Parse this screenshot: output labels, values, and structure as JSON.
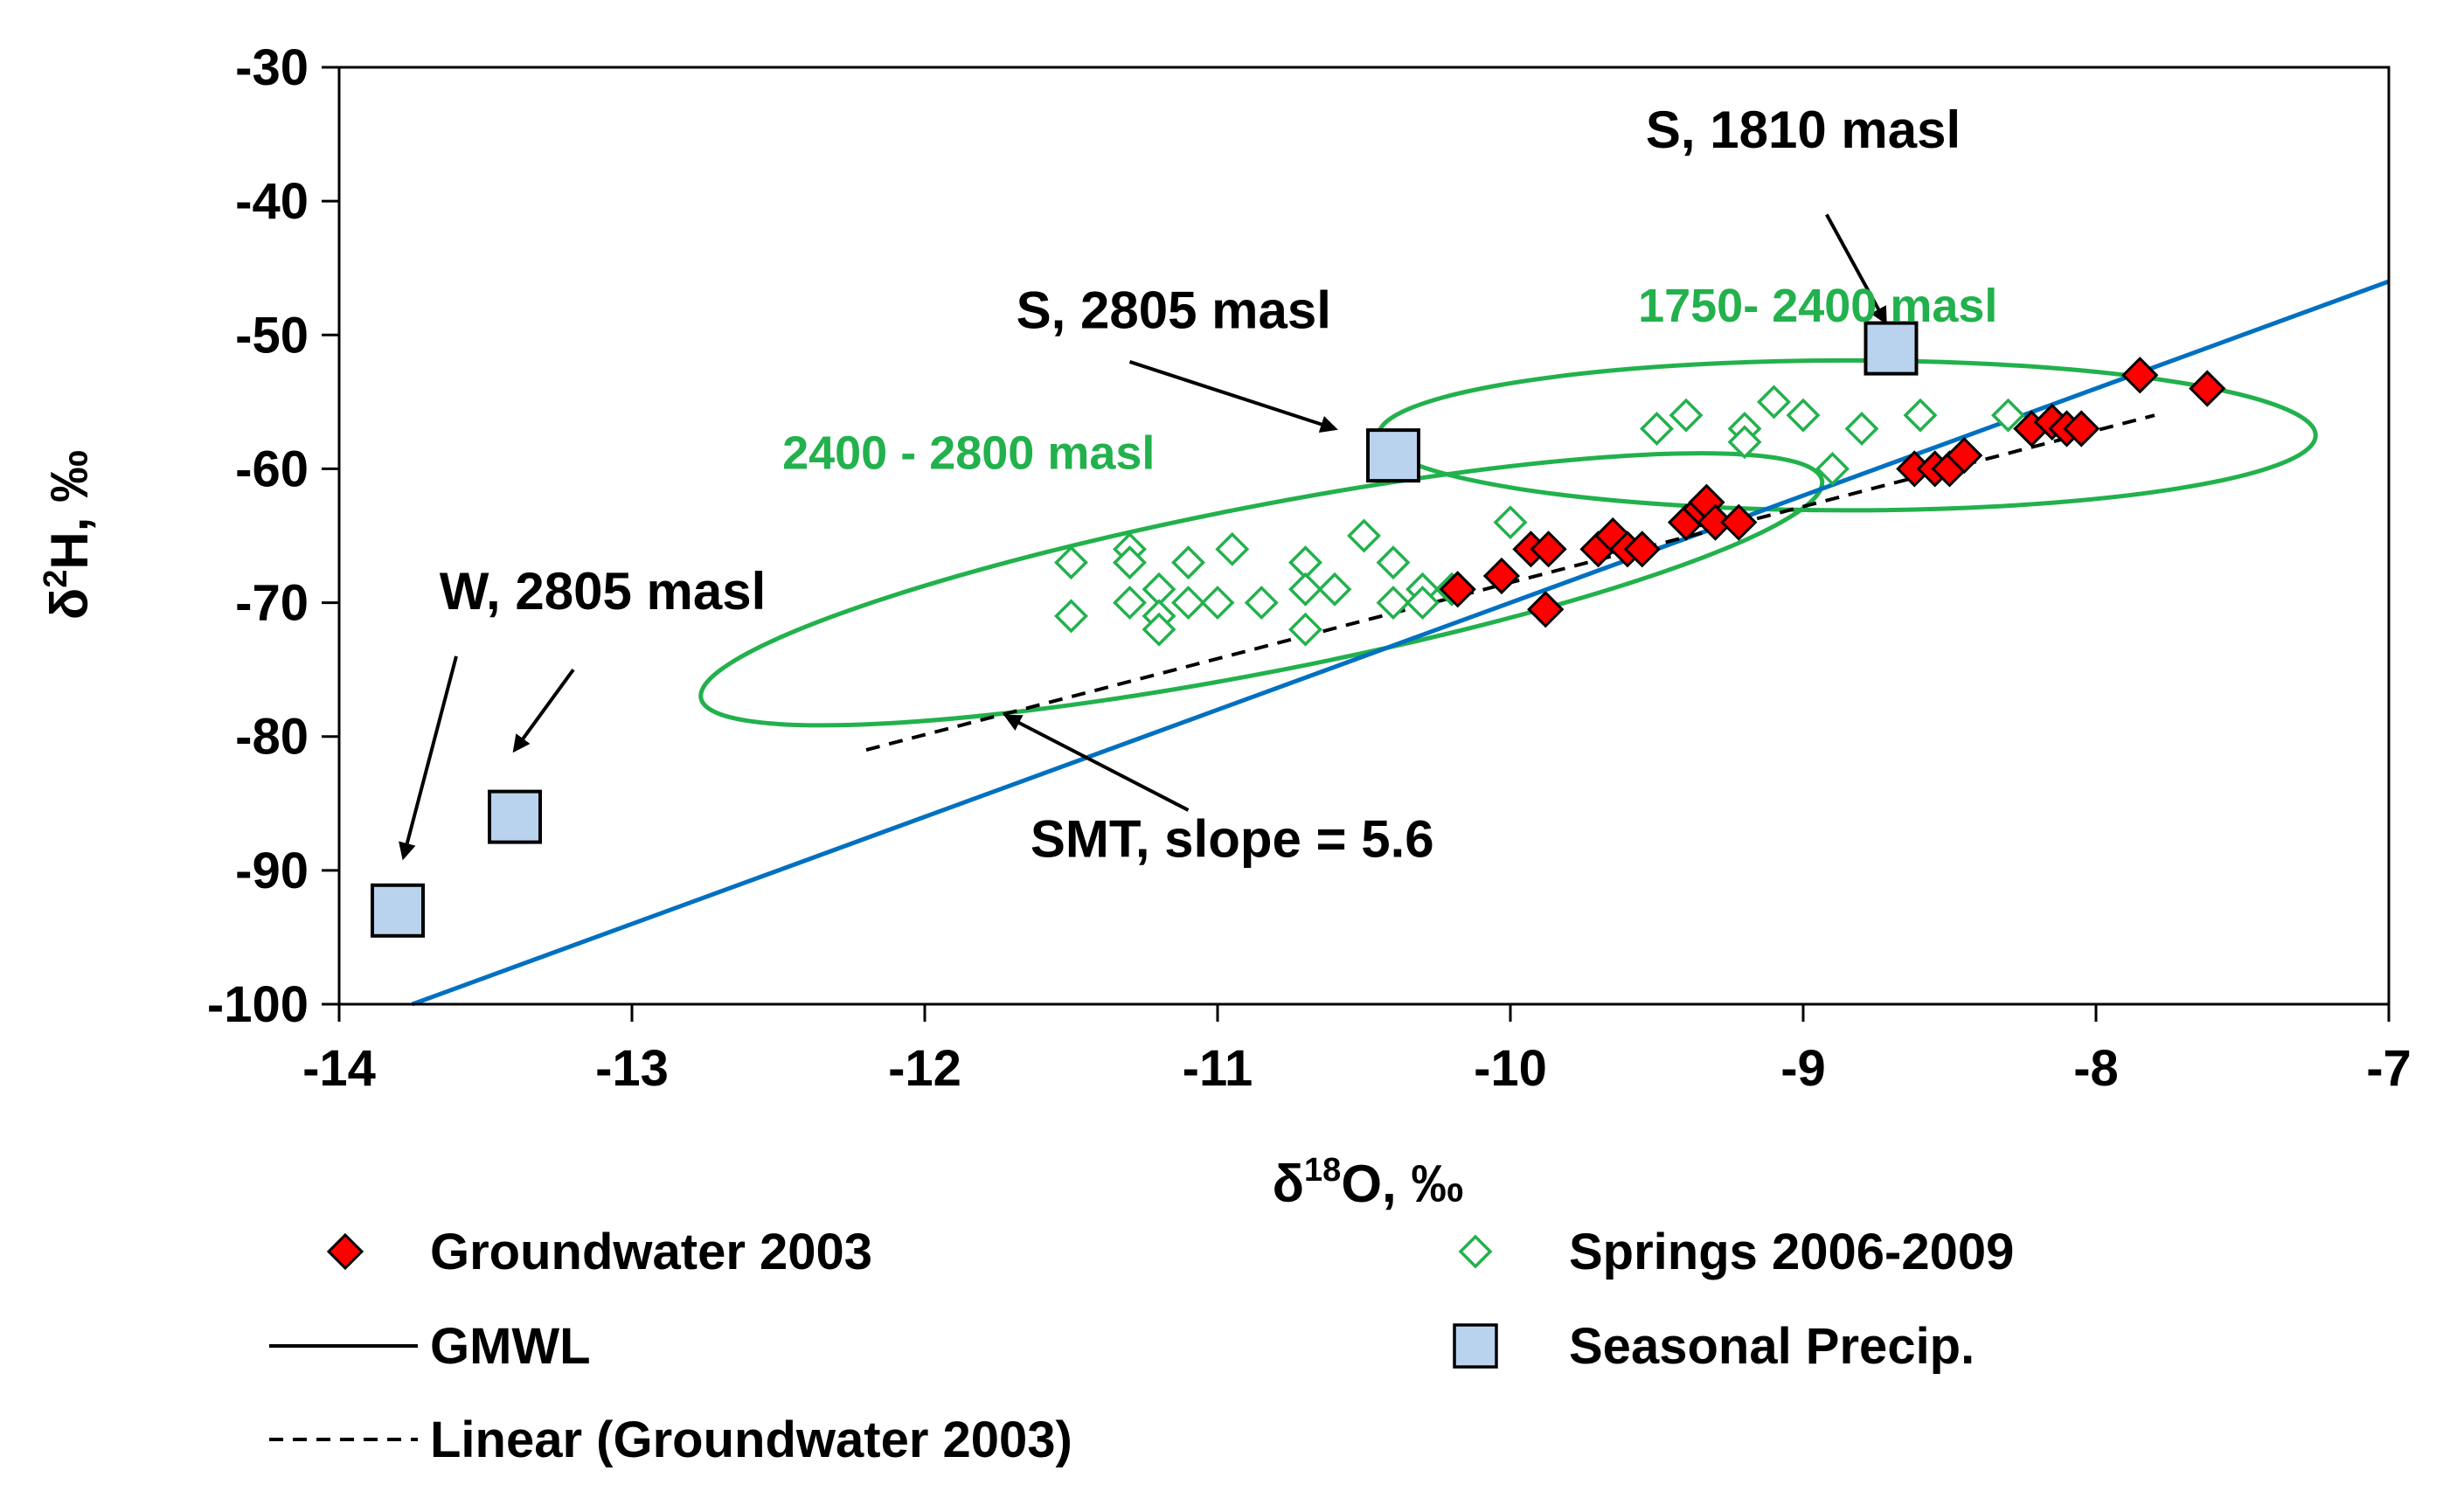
{
  "chart_data": {
    "type": "scatter",
    "title": "",
    "xlabel": {
      "delta": "δ",
      "sup": "18",
      "rest": "O, ‰"
    },
    "ylabel": {
      "delta": "δ",
      "sup": "2",
      "rest": "H, ‰"
    },
    "xlim": [
      -14,
      -7
    ],
    "ylim": [
      -100,
      -30
    ],
    "xticks": [
      -14,
      -13,
      -12,
      -11,
      -10,
      -9,
      -8,
      -7
    ],
    "yticks": [
      -100,
      -90,
      -80,
      -70,
      -60,
      -50,
      -40,
      -30
    ],
    "grid": false,
    "legend_position": "bottom",
    "colors": {
      "groundwater": "#ff0000",
      "springs": "#22b14c",
      "gmwl": "#0070c0",
      "precip_fill": "#b9d3ee",
      "ellipse": "#22b14c"
    },
    "series": [
      {
        "name": "Groundwater 2003",
        "marker": "diamond-filled",
        "points": [
          [
            -10.18,
            -69
          ],
          [
            -10.03,
            -68
          ],
          [
            -9.93,
            -66
          ],
          [
            -9.87,
            -66
          ],
          [
            -9.88,
            -70.5
          ],
          [
            -9.7,
            -66
          ],
          [
            -9.65,
            -65
          ],
          [
            -9.6,
            -66
          ],
          [
            -9.55,
            -66
          ],
          [
            -9.4,
            -64
          ],
          [
            -9.35,
            -63
          ],
          [
            -9.33,
            -62.5
          ],
          [
            -9.3,
            -64
          ],
          [
            -9.22,
            -64
          ],
          [
            -8.62,
            -60
          ],
          [
            -8.55,
            -60
          ],
          [
            -8.5,
            -60
          ],
          [
            -8.45,
            -59
          ],
          [
            -8.22,
            -57
          ],
          [
            -8.15,
            -56.5
          ],
          [
            -8.1,
            -57
          ],
          [
            -8.05,
            -57
          ],
          [
            -7.85,
            -53
          ],
          [
            -7.62,
            -54
          ]
        ]
      },
      {
        "name": "Springs 2006-2009",
        "marker": "diamond-open",
        "points": [
          [
            -11.5,
            -67
          ],
          [
            -11.5,
            -71
          ],
          [
            -11.3,
            -66
          ],
          [
            -11.3,
            -67
          ],
          [
            -11.3,
            -70
          ],
          [
            -11.2,
            -69
          ],
          [
            -11.2,
            -71
          ],
          [
            -11.2,
            -72
          ],
          [
            -11.1,
            -67
          ],
          [
            -11.1,
            -70
          ],
          [
            -11.0,
            -70
          ],
          [
            -10.95,
            -66
          ],
          [
            -10.85,
            -70
          ],
          [
            -10.7,
            -67
          ],
          [
            -10.7,
            -69
          ],
          [
            -10.7,
            -72
          ],
          [
            -10.6,
            -69
          ],
          [
            -10.5,
            -65
          ],
          [
            -10.4,
            -67
          ],
          [
            -10.4,
            -70
          ],
          [
            -10.3,
            -69
          ],
          [
            -10.3,
            -70
          ],
          [
            -10.2,
            -69
          ],
          [
            -10.0,
            -64
          ],
          [
            -9.5,
            -57
          ],
          [
            -9.4,
            -56
          ],
          [
            -9.2,
            -57
          ],
          [
            -9.2,
            -58
          ],
          [
            -9.1,
            -55
          ],
          [
            -9.0,
            -56
          ],
          [
            -8.9,
            -60
          ],
          [
            -8.8,
            -57
          ],
          [
            -8.6,
            -56
          ],
          [
            -8.3,
            -56
          ]
        ]
      },
      {
        "name": "GMWL",
        "type": "line",
        "slope": 8,
        "intercept": 10,
        "x_range": [
          -13.75,
          -7
        ]
      },
      {
        "name": "Seasonal Precip.",
        "marker": "square",
        "points": [
          [
            -13.8,
            -93
          ],
          [
            -13.4,
            -86
          ],
          [
            -10.4,
            -59
          ],
          [
            -8.7,
            -51
          ]
        ]
      },
      {
        "name": "Linear (Groundwater 2003)",
        "type": "line",
        "style": "dashed",
        "points": [
          [
            -12.2,
            -81
          ],
          [
            -7.8,
            -56
          ]
        ]
      }
    ],
    "ellipses": [
      {
        "label_ref": "band_2400_2800",
        "cx": -10.85,
        "cy": -69,
        "rx": 1.95,
        "ry": 6.2,
        "rotate_deg": -11
      },
      {
        "label_ref": "band_1750_2400",
        "cx": -8.85,
        "cy": -57.5,
        "rx": 1.6,
        "ry": 5.6,
        "rotate_deg": 0
      }
    ],
    "annotations": {
      "s1810": {
        "text": "S, 1810 masl",
        "anchor": [
          -9.0,
          -36
        ],
        "arrow_from": [
          -8.92,
          -41
        ],
        "arrow_to": [
          -8.72,
          -49
        ]
      },
      "s2805": {
        "text": "S, 2805 masl",
        "anchor": [
          -11.15,
          -49.5
        ],
        "arrow_from": [
          -11.3,
          -52
        ],
        "arrow_to": [
          -10.6,
          -57
        ]
      },
      "w2805": {
        "text": "W, 2805 masl",
        "anchor": [
          -13.1,
          -70.5
        ],
        "arrow1_from": [
          -13.6,
          -74
        ],
        "arrow1_to": [
          -13.78,
          -89
        ],
        "arrow2_from": [
          -13.2,
          -75
        ],
        "arrow2_to": [
          -13.4,
          -81
        ]
      },
      "smt": {
        "text": "SMT, slope = 5.6",
        "anchor": [
          -10.95,
          -89
        ],
        "arrow_from": [
          -11.1,
          -85.5
        ],
        "arrow_to": [
          -11.72,
          -78.5
        ]
      },
      "band_1750_2400": {
        "text": "1750- 2400 masl",
        "anchor": [
          -8.95,
          -49
        ]
      },
      "band_2400_2800": {
        "text": "2400 - 2800 masl",
        "anchor": [
          -11.85,
          -60
        ]
      }
    },
    "legend": [
      {
        "label": "Groundwater 2003",
        "marker": "diamond-filled"
      },
      {
        "label": "Springs 2006-2009",
        "marker": "diamond-open"
      },
      {
        "label": "GMWL",
        "marker": "solid-line"
      },
      {
        "label": "Seasonal Precip.",
        "marker": "square"
      },
      {
        "label": "Linear (Groundwater 2003)",
        "marker": "dashed-line"
      }
    ]
  }
}
